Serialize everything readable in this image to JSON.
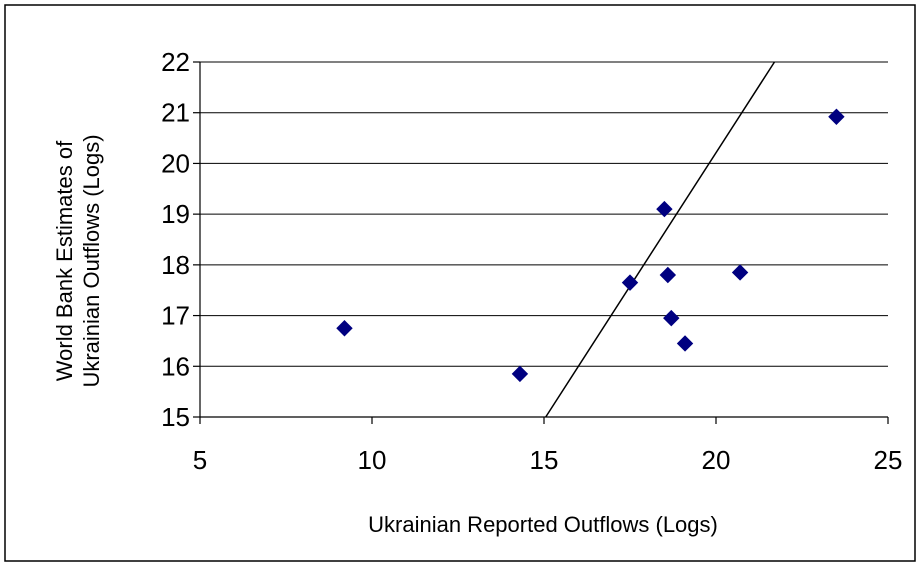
{
  "chart_data": {
    "type": "scatter",
    "title": "",
    "xlabel": "Ukrainian Reported Outflows (Logs)",
    "ylabel_lines": [
      "World Bank Estimates of",
      "Ukrainian Outflows (Logs)"
    ],
    "xlim": [
      5,
      25
    ],
    "ylim": [
      15,
      22
    ],
    "x_ticks": [
      "5",
      "10",
      "15",
      "20",
      "25"
    ],
    "y_ticks": [
      "15",
      "16",
      "17",
      "18",
      "19",
      "20",
      "21",
      "22"
    ],
    "grid": "horizontal",
    "legend": "none",
    "colors": {
      "marker": "#000080",
      "line": "#000000",
      "grid": "#000000"
    },
    "series": [
      {
        "marker": "diamond",
        "x": [
          9.2,
          14.3,
          17.5,
          18.5,
          18.6,
          18.7,
          19.1,
          20.7,
          23.5
        ],
        "y": [
          16.75,
          15.85,
          17.65,
          19.1,
          17.8,
          16.95,
          16.45,
          17.85,
          20.92
        ]
      }
    ],
    "reference_line": {
      "x": [
        15.05,
        21.7
      ],
      "y": [
        15,
        22
      ]
    }
  }
}
